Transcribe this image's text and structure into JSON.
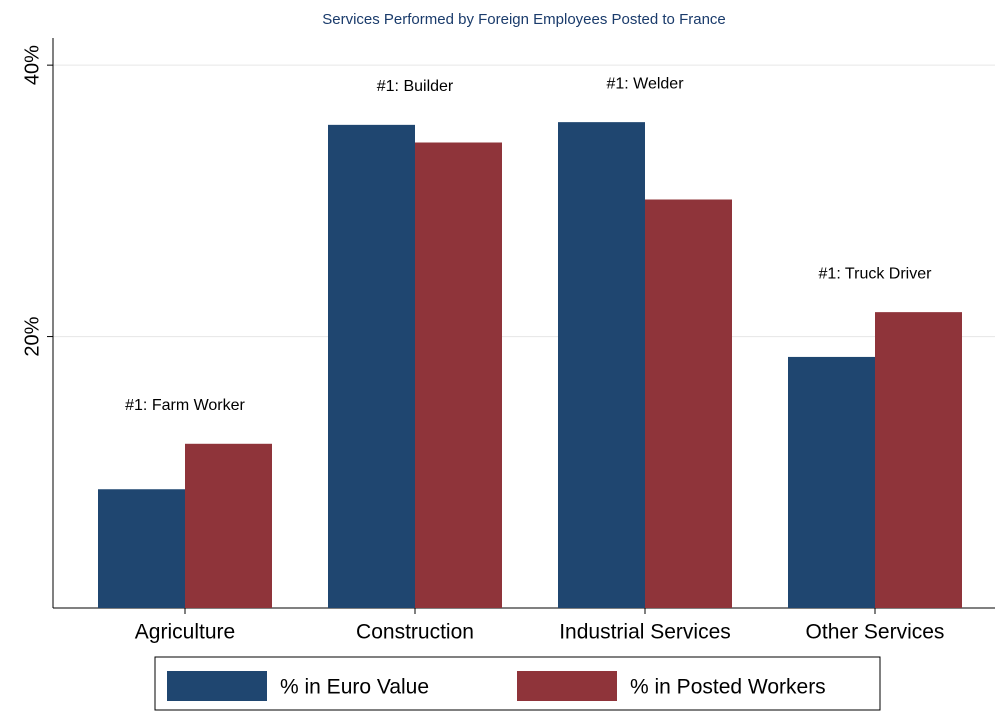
{
  "chart_data": {
    "type": "bar",
    "title": "Services Performed by Foreign Employees Posted to France",
    "categories": [
      "Agriculture",
      "Construction",
      "Industrial Services",
      "Other Services"
    ],
    "annotations": [
      "#1: Farm Worker",
      "#1: Builder",
      "#1: Welder",
      "#1: Truck Driver"
    ],
    "series": [
      {
        "name": "% in Euro Value",
        "color": "#1f4670",
        "values": [
          8.75,
          35.6,
          35.8,
          18.5
        ]
      },
      {
        "name": "% in Posted Workers",
        "color": "#8f343a",
        "values": [
          12.1,
          34.3,
          30.1,
          21.8
        ]
      }
    ],
    "ylim": [
      0,
      42
    ],
    "yticks": [
      {
        "value": 20,
        "label": "20%"
      },
      {
        "value": 40,
        "label": "40%"
      }
    ],
    "grid": true
  }
}
